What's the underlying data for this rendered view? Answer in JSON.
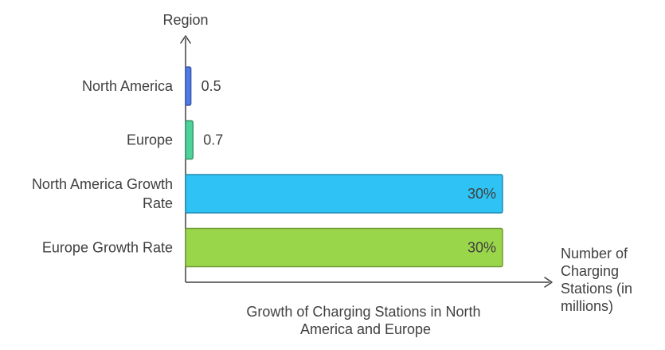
{
  "chart_data": {
    "type": "bar",
    "orientation": "horizontal",
    "title": "Growth of Charging Stations in North America and Europe",
    "title_lines": [
      "Growth of Charging Stations in North",
      "America and Europe"
    ],
    "y_axis_label": "Region",
    "x_axis_label": "Number of Charging Stations (in millions)",
    "x_axis_label_lines": [
      "Number of",
      "Charging",
      "Stations (in",
      "millions)"
    ],
    "categories": [
      "North America",
      "Europe",
      "North America Growth Rate",
      "Europe Growth Rate"
    ],
    "category_label_lines": [
      [
        "North America"
      ],
      [
        "Europe"
      ],
      [
        "North America Growth",
        "Rate"
      ],
      [
        "Europe Growth Rate"
      ]
    ],
    "values": [
      0.5,
      0.7,
      30,
      30
    ],
    "value_labels": [
      "0.5",
      "0.7",
      "30%",
      "30%"
    ],
    "colors": [
      "#4f7be8",
      "#4fd19a",
      "#2fc3f5",
      "#9ad64a"
    ],
    "grid": false,
    "legend": "none"
  }
}
